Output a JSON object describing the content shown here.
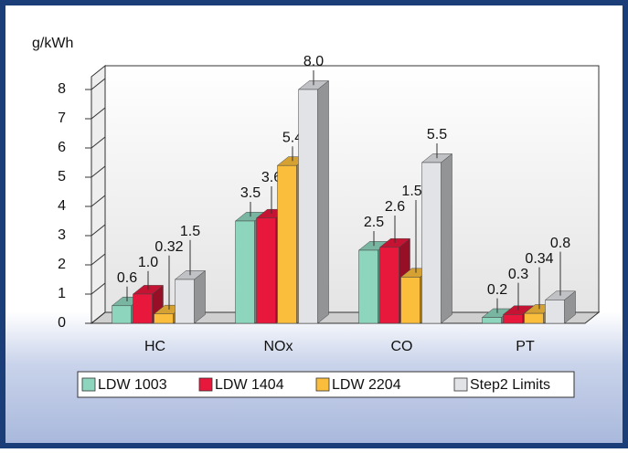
{
  "chart_data": {
    "type": "bar3d",
    "ylabel": "g/kWh",
    "categories": [
      "HC",
      "NOx",
      "CO",
      "PT"
    ],
    "series": [
      {
        "name": "LDW 1003",
        "color": "#8dd6bd",
        "values": [
          0.6,
          3.5,
          2.5,
          0.2
        ],
        "value_labels": [
          "0.6",
          "3.5",
          "2.5",
          "0.2"
        ]
      },
      {
        "name": "LDW 1404",
        "color": "#e8173c",
        "values": [
          1.0,
          3.6,
          2.6,
          0.3
        ],
        "value_labels": [
          "1.0",
          "3.6",
          "2.6",
          "0.3"
        ]
      },
      {
        "name": "LDW 2204",
        "color": "#fbbd3c",
        "values": [
          0.32,
          5.4,
          1.58,
          0.34
        ],
        "value_labels": [
          "0.32",
          "5.4",
          "1.58",
          "0.34"
        ]
      },
      {
        "name": "Step2 Limits",
        "color": "#e2e3e6",
        "values": [
          1.5,
          8.0,
          5.5,
          0.8
        ],
        "value_labels": [
          "1.5",
          "8.0",
          "5.5",
          "0.8"
        ]
      }
    ],
    "ylim": [
      0,
      8
    ],
    "yticks": [
      0,
      1,
      2,
      3,
      4,
      5,
      6,
      7,
      8
    ],
    "grid": false,
    "legend": "bottom"
  }
}
